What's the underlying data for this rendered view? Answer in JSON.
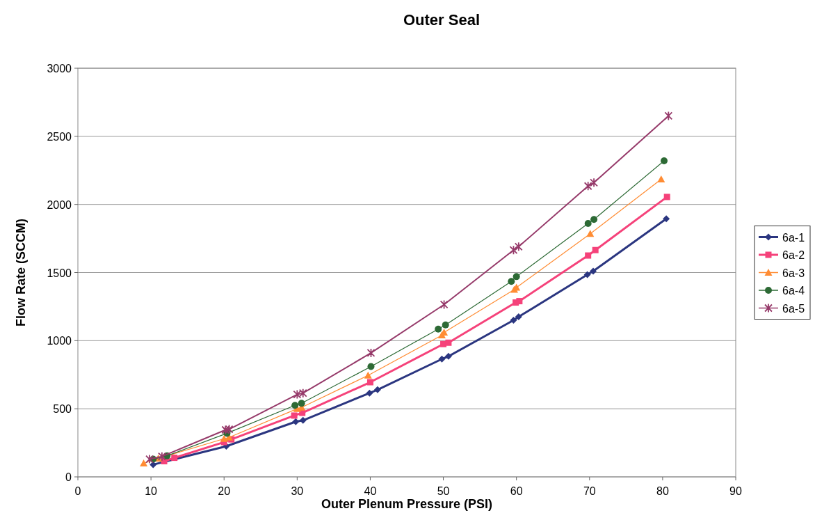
{
  "chart_data": {
    "type": "line",
    "title": "Outer Seal",
    "xlabel": "Outer Plenum Pressure (PSI)",
    "ylabel": "Flow Rate (SCCM)",
    "xlim": [
      0,
      90
    ],
    "xticks": [
      0,
      10,
      20,
      30,
      40,
      50,
      60,
      70,
      80,
      90
    ],
    "ylim": [
      0,
      3000
    ],
    "yticks": [
      0,
      500,
      1000,
      1500,
      2000,
      2500,
      3000
    ],
    "grid": "y",
    "legend": "right",
    "series": [
      {
        "name": "6a-1",
        "color": "#2b3680",
        "marker": "diamond",
        "x": [
          10.3,
          12,
          20.3,
          29.8,
          30.8,
          39.9,
          41,
          49.8,
          50.7,
          59.6,
          60.3,
          69.7,
          70.5,
          80.5
        ],
        "values": [
          90,
          null,
          225,
          405,
          415,
          615,
          640,
          865,
          885,
          1150,
          1175,
          1485,
          1510,
          1895
        ]
      },
      {
        "name": "6a-2",
        "color": "#f5427a",
        "marker": "square",
        "x": [
          11.8,
          13.2,
          20,
          21,
          29.6,
          30.7,
          40,
          50,
          50.7,
          59.9,
          60.4,
          69.8,
          70.8,
          80.6
        ],
        "values": [
          115,
          140,
          255,
          275,
          450,
          470,
          695,
          975,
          985,
          1280,
          1290,
          1625,
          1665,
          2055
        ]
      },
      {
        "name": "6a-3",
        "color": "#ff8c33",
        "marker": "triangle",
        "x": [
          9,
          11,
          20,
          20.7,
          30,
          30.6,
          39.7,
          49.8,
          50.1,
          59.7,
          60,
          70.1,
          79.8
        ],
        "values": [
          100,
          135,
          280,
          290,
          500,
          510,
          745,
          1040,
          1060,
          1375,
          1390,
          1785,
          2185
        ]
      },
      {
        "name": "6a-4",
        "color": "#2d6a35",
        "marker": "circle",
        "x": [
          10.3,
          12.2,
          20.4,
          29.7,
          30.6,
          40.1,
          49.3,
          50.3,
          59.3,
          60,
          69.8,
          70.6,
          80.2
        ],
        "values": [
          130,
          155,
          320,
          525,
          540,
          810,
          1085,
          1115,
          1435,
          1470,
          1860,
          1890,
          2320
        ]
      },
      {
        "name": "6a-5",
        "color": "#963a6a",
        "marker": "cross",
        "x": [
          9.8,
          11.5,
          20.2,
          20.7,
          30,
          30.8,
          40.1,
          50.1,
          59.6,
          60.3,
          69.8,
          70.6,
          80.8
        ],
        "values": [
          130,
          150,
          345,
          350,
          605,
          615,
          910,
          1265,
          1665,
          1690,
          2135,
          2160,
          2650
        ]
      }
    ]
  }
}
